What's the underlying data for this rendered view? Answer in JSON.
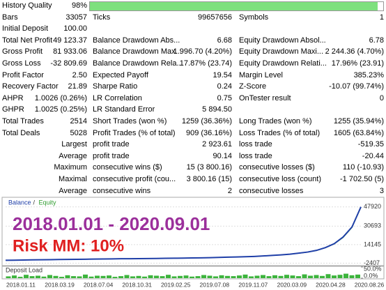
{
  "table": {
    "rows": [
      [
        [
          "History Quality",
          "98%"
        ]
      ],
      [
        [
          "Bars",
          "33057"
        ],
        [
          "Ticks",
          "99657656"
        ],
        [
          "Symbols",
          "1"
        ]
      ],
      [
        [
          "Initial Deposit",
          "100.00"
        ]
      ],
      [
        [
          "Total Net Profit",
          "49 123.37"
        ],
        [
          "Balance Drawdown Abs...",
          "6.68"
        ],
        [
          "Equity Drawdown Absol...",
          "6.78"
        ]
      ],
      [
        [
          "Gross Profit",
          "81 933.06"
        ],
        [
          "Balance Drawdown Max...",
          "1 996.70 (4.20%)"
        ],
        [
          "Equity Drawdown Maxi...",
          "2 244.36 (4.70%)"
        ]
      ],
      [
        [
          "Gross Loss",
          "-32 809.69"
        ],
        [
          "Balance Drawdown Rela...",
          "17.87% (23.74)"
        ],
        [
          "Equity Drawdown Relati...",
          "17.96% (23.91)"
        ]
      ],
      [
        [
          "Profit Factor",
          "2.50"
        ],
        [
          "Expected Payoff",
          "19.54"
        ],
        [
          "Margin Level",
          "385.23%"
        ]
      ],
      [
        [
          "Recovery Factor",
          "21.89"
        ],
        [
          "Sharpe Ratio",
          "0.24"
        ],
        [
          "Z-Score",
          "-10.07 (99.74%)"
        ]
      ],
      [
        [
          "AHPR",
          "1.0026 (0.26%)"
        ],
        [
          "LR Correlation",
          "0.75"
        ],
        [
          "OnTester result",
          "0"
        ]
      ],
      [
        [
          "GHPR",
          "1.0025 (0.25%)"
        ],
        [
          "LR Standard Error",
          "5 894.50"
        ]
      ],
      [
        [
          "Total Trades",
          "2514"
        ],
        [
          "Short Trades (won %)",
          "1259 (36.36%)"
        ],
        [
          "Long Trades (won %)",
          "1255 (35.94%)"
        ]
      ],
      [
        [
          "Total Deals",
          "5028"
        ],
        [
          "Profit Trades (% of total)",
          "909 (36.16%)"
        ],
        [
          "Loss Trades (% of total)",
          "1605 (63.84%)"
        ]
      ],
      [
        [
          "Largest"
        ],
        [
          "profit trade",
          "2 923.61"
        ],
        [
          "loss trade",
          "-519.35"
        ]
      ],
      [
        [
          "Average"
        ],
        [
          "profit trade",
          "90.14"
        ],
        [
          "loss trade",
          "-20.44"
        ]
      ],
      [
        [
          "Maximum"
        ],
        [
          "consecutive wins ($)",
          "15 (3 800.16)"
        ],
        [
          "consecutive losses ($)",
          "110 (-10.93)"
        ]
      ],
      [
        [
          "Maximal"
        ],
        [
          "consecutive profit (cou...",
          "3 800.16 (15)"
        ],
        [
          "consecutive loss (count)",
          "-1 702.50 (5)"
        ]
      ],
      [
        [
          "Average"
        ],
        [
          "consecutive wins",
          "2"
        ],
        [
          "consecutive losses",
          "3"
        ]
      ]
    ]
  },
  "chart_data": [
    {
      "type": "line",
      "annotations": [
        "2018.01.01 - 2020.09.01",
        "Risk MM: 10%"
      ],
      "series": [
        {
          "name": "Balance",
          "color": "#1f3fa8",
          "values": [
            100,
            200,
            350,
            500,
            600,
            700,
            800,
            900,
            1000,
            1100,
            1200,
            1300,
            1400,
            1500,
            1550,
            1600,
            1700,
            1800,
            1900,
            2000,
            2100,
            2200,
            2300,
            2500,
            2700,
            2900,
            3100,
            3300,
            3600,
            4000,
            4500,
            5000,
            5600,
            6500,
            7500,
            9000,
            11500,
            15000,
            21000,
            30000,
            47920
          ]
        },
        {
          "name": "Equity",
          "color": "#2e9c2e",
          "values": [
            100,
            190,
            340,
            490,
            590,
            690,
            790,
            890,
            990,
            1090,
            1190,
            1290,
            1390,
            1490,
            1540,
            1590,
            1690,
            1790,
            1890,
            1990,
            2090,
            2190,
            2290,
            2480,
            2680,
            2880,
            3080,
            3280,
            3570,
            3960,
            4450,
            4950,
            5520,
            6400,
            7400,
            8850,
            11300,
            14700,
            20500,
            29500,
            47500
          ]
        }
      ],
      "ylim": [
        -4000,
        54000
      ],
      "yticks": [
        -2407,
        14145,
        30693,
        47920
      ]
    },
    {
      "type": "bar",
      "title": "Deposit Load",
      "color": "#3cb43c",
      "values": [
        8,
        12,
        6,
        15,
        9,
        11,
        7,
        14,
        10,
        6,
        13,
        9,
        8,
        16,
        7,
        11,
        10,
        12,
        6,
        9,
        14,
        8,
        10,
        7,
        13,
        11,
        9,
        15,
        8,
        10,
        12,
        7,
        9,
        14,
        11,
        8,
        13,
        10,
        9,
        12,
        16,
        8,
        11,
        14,
        9,
        13,
        10,
        15,
        12,
        9,
        17,
        11,
        14,
        10,
        18,
        12,
        15,
        20,
        13,
        16
      ],
      "ylim": [
        0,
        50
      ],
      "yticks": [
        {
          "value": 0,
          "label": "0.0%"
        },
        {
          "value": 50,
          "label": "50.0%"
        }
      ],
      "xtick_labels": [
        "2018.01.11",
        "2018.03.19",
        "2018.07.04",
        "2018.10.31",
        "2019.02.25",
        "2019.07.08",
        "2019.11.07",
        "2020.03.09",
        "2020.04.28",
        "2020.08.26"
      ]
    }
  ]
}
